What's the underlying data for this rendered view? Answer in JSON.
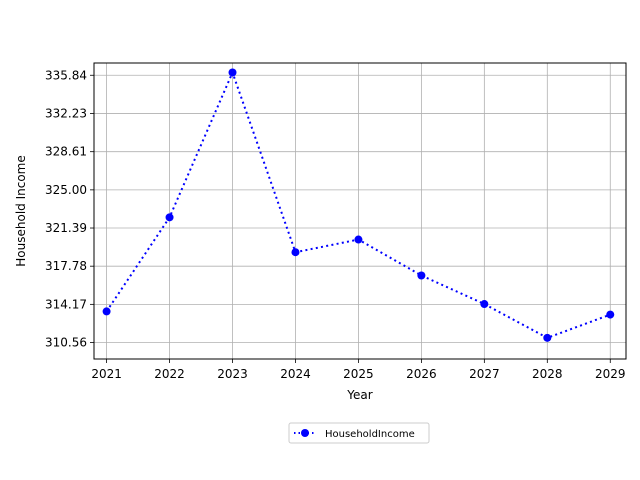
{
  "chart_data": {
    "type": "line",
    "title": "",
    "xlabel": "Year",
    "ylabel": "Household Income",
    "x": [
      2021,
      2022,
      2023,
      2024,
      2025,
      2026,
      2027,
      2028,
      2029
    ],
    "x_tick_labels": [
      "2021",
      "2022",
      "2023",
      "2024",
      "2025",
      "2026",
      "2027",
      "2028",
      "2029"
    ],
    "y_ticks": [
      310.56,
      314.17,
      317.78,
      321.39,
      325.0,
      328.61,
      332.23,
      335.84
    ],
    "y_tick_labels": [
      "310.56",
      "314.17",
      "317.78",
      "321.39",
      "325.00",
      "328.61",
      "332.23",
      "335.84"
    ],
    "xlim": [
      2020.8,
      2029.25
    ],
    "ylim": [
      309.0,
      337.0
    ],
    "grid": true,
    "legend_position": "bottom-center",
    "series": [
      {
        "name": "HouseholdIncome",
        "color": "#0000ff",
        "line_style": "dotted",
        "marker": "circle",
        "values": [
          313.5,
          322.4,
          336.1,
          319.1,
          320.3,
          316.9,
          314.2,
          311.0,
          313.2
        ]
      }
    ]
  }
}
